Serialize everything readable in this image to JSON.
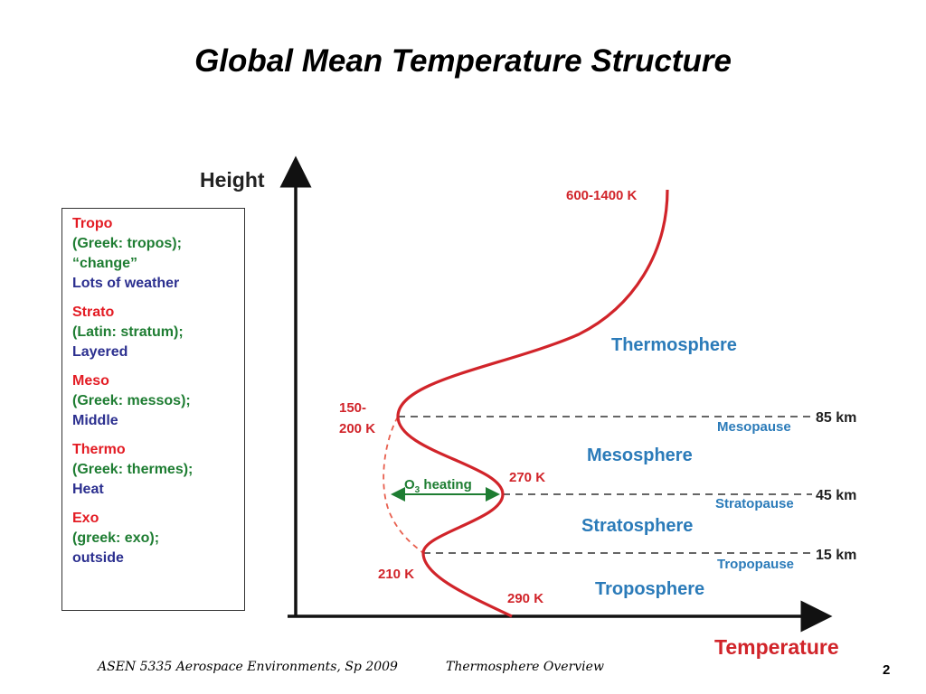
{
  "title": "Global Mean Temperature Structure",
  "legend": [
    {
      "prefix": "Tropo",
      "origin": "(Greek: tropos);",
      "meaning_quoted": "“change”",
      "meaning": "Lots of weather"
    },
    {
      "prefix": "Strato",
      "origin": "(Latin: stratum);",
      "meaning_quoted": "",
      "meaning": "Layered"
    },
    {
      "prefix": "Meso",
      "origin": "(Greek: messos);",
      "meaning_quoted": "",
      "meaning": "Middle"
    },
    {
      "prefix": "Thermo",
      "origin": "(Greek: thermes);",
      "meaning_quoted": "",
      "meaning": "Heat"
    },
    {
      "prefix": "Exo",
      "origin": "(greek: exo);",
      "meaning_quoted": "",
      "meaning": "outside"
    }
  ],
  "diagram": {
    "y_axis_label": "Height",
    "x_axis_label": "Temperature",
    "top_temp": "600-1400 K",
    "meso_temp_line1": "150-",
    "meso_temp_line2": "200 K",
    "strato_temp": "270 K",
    "tropo_temp": "210 K",
    "surface_temp": "290 K",
    "ozone_prefix": "O",
    "ozone_sub": "3",
    "ozone_suffix": " heating",
    "heights": {
      "mesopause": "85 km",
      "stratopause": "45 km",
      "tropopause": "15 km"
    },
    "layers": {
      "thermosphere": "Thermosphere",
      "mesopause": "Mesopause",
      "mesosphere": "Mesosphere",
      "stratopause": "Stratopause",
      "stratosphere": "Stratosphere",
      "tropopause": "Tropopause",
      "troposphere": "Troposphere"
    }
  },
  "colors": {
    "red": "#e31b23",
    "green": "#1e7d32",
    "blue": "#2b7bb9",
    "navy": "#2b2f8f"
  },
  "footer": {
    "course": "ASEN 5335 Aerospace Environments, Sp 2009",
    "topic": "Thermosphere Overview",
    "page": "2"
  }
}
